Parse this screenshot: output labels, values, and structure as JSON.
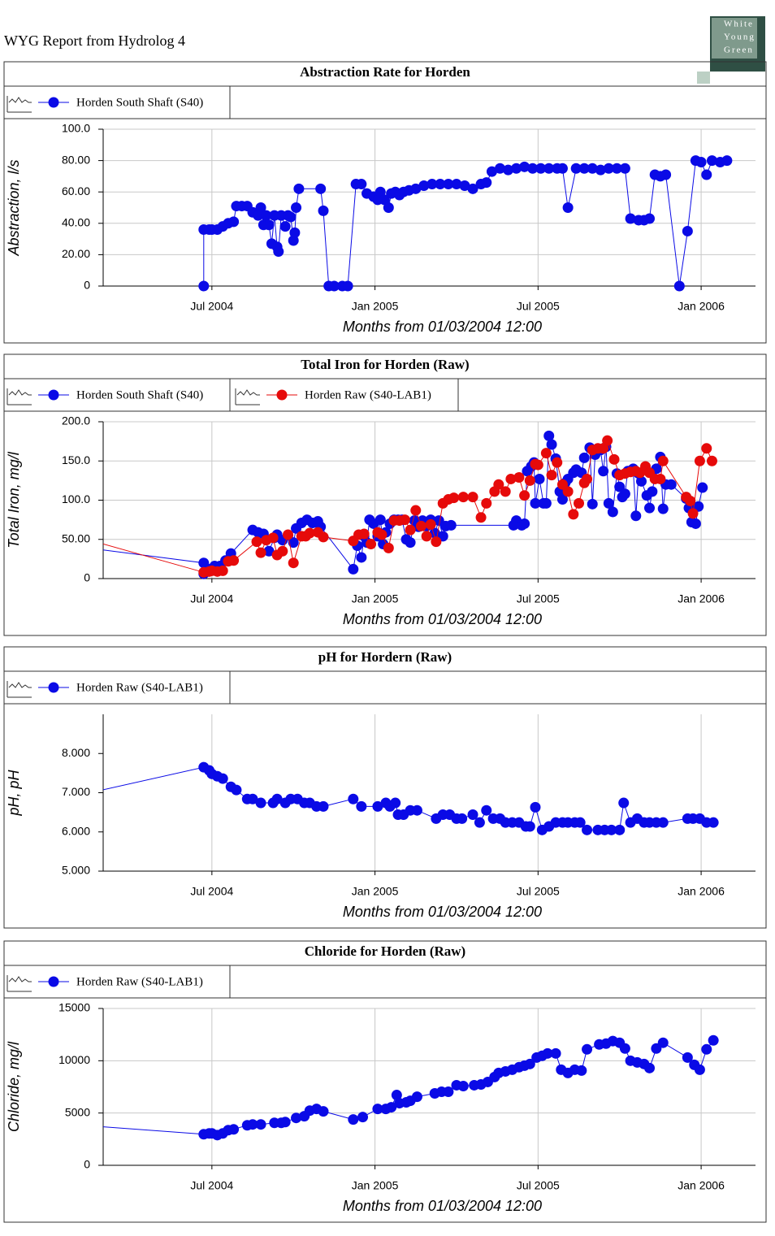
{
  "header": {
    "title": "WYG Report from Hydrolog 4",
    "logo": [
      "White",
      "Young",
      "Green"
    ]
  },
  "chart_data": [
    {
      "type": "line",
      "title": "Abstraction Rate for Horden",
      "ylabel": "Abstraction, l/s",
      "xlabel": "Months from 01/03/2004 12:00",
      "xlim": [
        0,
        24
      ],
      "xticks": [
        {
          "value": 4,
          "label": "Jul 2004"
        },
        {
          "value": 10,
          "label": "Jan 2005"
        },
        {
          "value": 16,
          "label": "Jul 2005"
        },
        {
          "value": 22,
          "label": "Jan 2006"
        }
      ],
      "ylim": [
        0,
        100
      ],
      "yticks": [
        0,
        {
          "value": 20,
          "label": "20.00"
        },
        {
          "value": 40,
          "label": "40.00"
        },
        {
          "value": 60,
          "label": "60.00"
        },
        {
          "value": 80,
          "label": "80.00"
        },
        {
          "value": 100,
          "label": "100.0"
        }
      ],
      "xgrid": true,
      "ygrid": true,
      "series": [
        {
          "name": "Horden South Shaft (S40)",
          "color": "#0a0ae6",
          "x": [
            3.7,
            3.7,
            3.9,
            4.0,
            4.2,
            4.4,
            4.6,
            4.8,
            4.9,
            5.1,
            5.3,
            5.5,
            5.7,
            5.8,
            5.9,
            6.0,
            6.1,
            6.2,
            6.3,
            6.4,
            6.45,
            6.55,
            6.7,
            6.8,
            6.9,
            7.0,
            7.05,
            7.1,
            7.2,
            8.0,
            8.1,
            8.3,
            8.5,
            8.8,
            9.0,
            9.3,
            9.5,
            9.7,
            9.95,
            10.1,
            10.2,
            10.35,
            10.5,
            10.6,
            10.75,
            10.9,
            11.05,
            11.25,
            11.5,
            11.8,
            12.1,
            12.4,
            12.7,
            13.0,
            13.3,
            13.6,
            13.9,
            14.1,
            14.3,
            14.6,
            14.9,
            15.2,
            15.5,
            15.8,
            16.1,
            16.4,
            16.7,
            16.9,
            17.1,
            17.4,
            17.7,
            18.0,
            18.3,
            18.6,
            18.9,
            19.2,
            19.4,
            19.7,
            19.9,
            20.1,
            20.3,
            20.5,
            20.7,
            21.2,
            21.5,
            21.8,
            22.0,
            22.2,
            22.4,
            22.7,
            22.95
          ],
          "values": [
            0,
            36,
            36,
            36,
            36,
            38,
            40,
            41,
            51,
            51,
            51,
            47,
            45,
            50,
            39,
            45,
            39,
            27,
            45,
            25,
            22,
            45,
            38,
            45,
            44,
            29,
            34,
            50,
            62,
            62,
            48,
            0,
            0,
            0,
            0,
            65,
            65,
            59,
            57,
            55,
            60,
            55,
            50,
            59,
            60,
            58,
            60,
            61,
            62,
            64,
            65,
            65,
            65,
            65,
            64,
            62,
            65,
            66,
            73,
            75,
            74,
            75,
            76,
            75,
            75,
            75,
            75,
            75,
            50,
            75,
            75,
            75,
            74,
            75,
            75,
            75,
            43,
            42,
            42,
            43,
            71,
            70,
            71,
            0,
            35,
            80,
            79,
            71,
            80,
            79,
            80
          ]
        }
      ]
    },
    {
      "type": "line",
      "title": "Total Iron for Horden (Raw)",
      "ylabel": "Total Iron, mg/l",
      "xlabel": "Months from 01/03/2004 12:00",
      "xlim": [
        0,
        24
      ],
      "xticks": [
        {
          "value": 4,
          "label": "Jul 2004"
        },
        {
          "value": 10,
          "label": "Jan 2005"
        },
        {
          "value": 16,
          "label": "Jul 2005"
        },
        {
          "value": 22,
          "label": "Jan 2006"
        }
      ],
      "ylim": [
        0,
        200
      ],
      "yticks": [
        0,
        {
          "value": 50,
          "label": "50.00"
        },
        {
          "value": 100,
          "label": "100.0"
        },
        {
          "value": 150,
          "label": "150.0"
        },
        {
          "value": 200,
          "label": "200.0"
        }
      ],
      "xgrid": true,
      "ygrid": true,
      "series": [
        {
          "name": "Horden South Shaft (S40)",
          "color": "#0a0ae6",
          "x": [
            -1,
            3.7,
            3.7,
            3.9,
            4.1,
            4.3,
            4.5,
            4.7,
            5.5,
            5.7,
            5.9,
            6.1,
            6.3,
            6.4,
            6.6,
            6.8,
            7.0,
            7.1,
            7.3,
            7.5,
            7.7,
            7.9,
            8.0,
            9.2,
            9.35,
            9.5,
            9.6,
            9.7,
            9.8,
            9.95,
            10.1,
            10.2,
            10.3,
            10.4,
            10.55,
            10.7,
            10.85,
            11.0,
            11.15,
            11.3,
            11.45,
            11.6,
            11.75,
            11.9,
            12.05,
            12.2,
            12.35,
            12.5,
            12.6,
            12.8,
            15.1,
            15.2,
            15.4,
            15.5,
            15.6,
            15.75,
            15.85,
            15.9,
            16.05,
            16.2,
            16.3,
            16.4,
            16.5,
            16.65,
            16.8,
            16.9,
            17.0,
            17.1,
            17.3,
            17.4,
            17.6,
            17.7,
            17.9,
            18.0,
            18.1,
            18.3,
            18.4,
            18.5,
            18.6,
            18.75,
            18.9,
            19.0,
            19.1,
            19.2,
            19.3,
            19.5,
            19.6,
            19.7,
            19.8,
            20.0,
            20.1,
            20.2,
            20.35,
            20.5,
            20.6,
            20.7,
            20.9,
            21.45,
            21.55,
            21.65,
            21.7,
            21.8,
            21.9,
            22.05
          ],
          "values": [
            41,
            20,
            6,
            12,
            16,
            16,
            23,
            32,
            62,
            59,
            57,
            35,
            52,
            56,
            49,
            55,
            46,
            64,
            71,
            75,
            71,
            73,
            66,
            12,
            42,
            27,
            54,
            46,
            75,
            70,
            54,
            75,
            44,
            59,
            70,
            75,
            75,
            75,
            50,
            46,
            74,
            66,
            74,
            67,
            75,
            58,
            74,
            54,
            67,
            68,
            68,
            74,
            68,
            70,
            137,
            143,
            148,
            96,
            127,
            96,
            96,
            182,
            171,
            153,
            111,
            101,
            122,
            127,
            135,
            139,
            135,
            154,
            167,
            95,
            158,
            164,
            137,
            168,
            96,
            85,
            134,
            117,
            104,
            108,
            137,
            140,
            80,
            134,
            124,
            106,
            90,
            111,
            140,
            155,
            89,
            120,
            120,
            102,
            90,
            72,
            91,
            70,
            92,
            116
          ]
        },
        {
          "name": "Horden Raw (S40-LAB1)",
          "color": "#e60a0a",
          "x": [
            -1,
            3.7,
            3.9,
            4.0,
            4.2,
            4.4,
            4.6,
            4.8,
            5.65,
            5.8,
            6.0,
            6.25,
            6.4,
            6.6,
            6.8,
            7.0,
            7.3,
            7.45,
            7.6,
            7.9,
            8.1,
            9.2,
            9.4,
            9.6,
            9.85,
            10.1,
            10.25,
            10.5,
            10.7,
            10.9,
            11.1,
            11.3,
            11.5,
            11.7,
            11.9,
            12.05,
            12.25,
            12.5,
            12.7,
            12.9,
            13.25,
            13.6,
            13.9,
            14.1,
            14.4,
            14.55,
            14.8,
            15.0,
            15.3,
            15.5,
            15.7,
            15.9,
            16.0,
            16.3,
            16.5,
            16.7,
            16.9,
            17.1,
            17.3,
            17.5,
            17.7,
            17.8,
            18.0,
            18.2,
            18.4,
            18.55,
            18.8,
            19.0,
            19.2,
            19.4,
            19.6,
            19.75,
            19.95,
            20.1,
            20.3,
            20.5,
            20.6,
            21.45,
            21.6,
            21.7,
            21.95,
            22.2,
            22.4
          ],
          "values": [
            54,
            8,
            9,
            10,
            9,
            10,
            22,
            23,
            47,
            33,
            49,
            52,
            30,
            35,
            56,
            20,
            54,
            54,
            58,
            59,
            53,
            48,
            56,
            57,
            44,
            59,
            56,
            39,
            74,
            74,
            75,
            62,
            87,
            67,
            54,
            69,
            47,
            96,
            101,
            103,
            104,
            104,
            78,
            96,
            111,
            120,
            111,
            127,
            129,
            106,
            125,
            146,
            145,
            160,
            132,
            148,
            120,
            111,
            82,
            96,
            122,
            127,
            164,
            166,
            166,
            176,
            152,
            132,
            134,
            136,
            137,
            135,
            143,
            135,
            127,
            127,
            150,
            104,
            99,
            83,
            150,
            166,
            150
          ]
        }
      ]
    },
    {
      "type": "line",
      "title": "pH for Hordern (Raw)",
      "ylabel": "pH, pH",
      "xlabel": "Months from 01/03/2004 12:00",
      "xlim": [
        0,
        24
      ],
      "xticks": [
        {
          "value": 4,
          "label": "Jul 2004"
        },
        {
          "value": 10,
          "label": "Jan 2005"
        },
        {
          "value": 16,
          "label": "Jul 2005"
        },
        {
          "value": 22,
          "label": "Jan 2006"
        }
      ],
      "ylim": [
        5,
        9
      ],
      "yticks": [
        {
          "value": 5,
          "label": "5.000"
        },
        {
          "value": 6,
          "label": "6.000"
        },
        {
          "value": 7,
          "label": "7.000"
        },
        {
          "value": 8,
          "label": "8.000"
        }
      ],
      "xgrid": true,
      "ygrid": false,
      "series": [
        {
          "name": "Horden Raw (S40-LAB1)",
          "color": "#0a0ae6",
          "x": [
            -1,
            3.7,
            3.9,
            4.0,
            4.2,
            4.4,
            4.7,
            4.9,
            5.3,
            5.5,
            5.8,
            6.25,
            6.4,
            6.7,
            6.9,
            7.15,
            7.4,
            7.6,
            7.85,
            8.1,
            9.2,
            9.5,
            10.1,
            10.4,
            10.55,
            10.75,
            10.85,
            11.05,
            11.3,
            11.55,
            12.25,
            12.5,
            12.75,
            13.0,
            13.2,
            13.6,
            13.85,
            14.1,
            14.35,
            14.6,
            14.8,
            15.05,
            15.3,
            15.55,
            15.7,
            15.9,
            16.15,
            16.4,
            16.65,
            16.9,
            17.1,
            17.35,
            17.55,
            17.8,
            18.2,
            18.45,
            18.7,
            19.0,
            19.15,
            19.4,
            19.65,
            19.9,
            20.1,
            20.35,
            20.6,
            21.5,
            21.7,
            21.95,
            22.2,
            22.45
          ],
          "values": [
            6.92,
            7.65,
            7.57,
            7.48,
            7.42,
            7.36,
            7.15,
            7.07,
            6.84,
            6.84,
            6.74,
            6.74,
            6.84,
            6.74,
            6.84,
            6.84,
            6.74,
            6.74,
            6.65,
            6.65,
            6.84,
            6.65,
            6.65,
            6.74,
            6.65,
            6.74,
            6.44,
            6.44,
            6.55,
            6.55,
            6.34,
            6.44,
            6.44,
            6.34,
            6.34,
            6.44,
            6.24,
            6.55,
            6.34,
            6.34,
            6.24,
            6.24,
            6.24,
            6.14,
            6.14,
            6.63,
            6.05,
            6.14,
            6.24,
            6.24,
            6.24,
            6.24,
            6.24,
            6.05,
            6.05,
            6.05,
            6.05,
            6.05,
            6.74,
            6.24,
            6.34,
            6.24,
            6.24,
            6.24,
            6.24,
            6.34,
            6.34,
            6.34,
            6.24,
            6.24
          ]
        }
      ]
    },
    {
      "type": "line",
      "title": "Chloride for Horden (Raw)",
      "ylabel": "Chloride, mg/l",
      "xlabel": "Months from 01/03/2004 12:00",
      "xlim": [
        0,
        24
      ],
      "xticks": [
        {
          "value": 4,
          "label": "Jul 2004"
        },
        {
          "value": 10,
          "label": "Jan 2005"
        },
        {
          "value": 16,
          "label": "Jul 2005"
        },
        {
          "value": 22,
          "label": "Jan 2006"
        }
      ],
      "ylim": [
        0,
        15000
      ],
      "yticks": [
        0,
        5000,
        10000,
        15000
      ],
      "xgrid": true,
      "ygrid": true,
      "series": [
        {
          "name": "Horden Raw (S40-LAB1)",
          "color": "#0a0ae6",
          "x": [
            -1,
            3.7,
            3.9,
            4.0,
            4.2,
            4.4,
            4.6,
            4.8,
            5.3,
            5.5,
            5.8,
            6.3,
            6.55,
            6.7,
            7.1,
            7.4,
            7.6,
            7.85,
            8.1,
            9.2,
            9.55,
            10.1,
            10.4,
            10.6,
            10.8,
            10.9,
            11.15,
            11.3,
            11.55,
            12.2,
            12.45,
            12.7,
            13.0,
            13.25,
            13.65,
            13.9,
            14.15,
            14.4,
            14.55,
            14.8,
            15.05,
            15.3,
            15.5,
            15.7,
            15.95,
            16.15,
            16.35,
            16.65,
            16.85,
            17.1,
            17.35,
            17.6,
            17.8,
            18.25,
            18.5,
            18.75,
            19.0,
            19.2,
            19.4,
            19.65,
            19.9,
            20.1,
            20.35,
            20.6,
            21.5,
            21.75,
            21.95,
            22.2,
            22.45
          ],
          "values": [
            3870,
            2970,
            3050,
            3050,
            2890,
            3050,
            3360,
            3440,
            3830,
            3910,
            3910,
            4060,
            4060,
            4140,
            4530,
            4690,
            5230,
            5390,
            5160,
            4380,
            4610,
            5390,
            5390,
            5550,
            6720,
            5940,
            6020,
            6170,
            6560,
            6880,
            7030,
            7030,
            7660,
            7580,
            7660,
            7730,
            7970,
            8440,
            8830,
            8980,
            9140,
            9380,
            9530,
            9690,
            10310,
            10470,
            10700,
            10700,
            9140,
            8830,
            9140,
            9060,
            11090,
            11560,
            11640,
            11880,
            11720,
            11170,
            10000,
            9840,
            9690,
            9300,
            11170,
            11720,
            10310,
            9610,
            9140,
            11090,
            11950
          ]
        }
      ]
    }
  ]
}
